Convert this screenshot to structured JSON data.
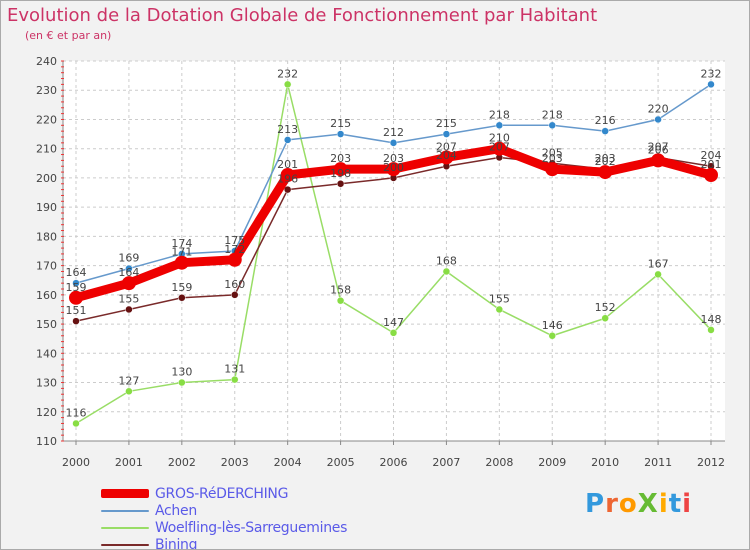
{
  "header": {
    "title": "Evolution de la Dotation Globale de Fonctionnement par Habitant",
    "subtitle": "(en € et par an)"
  },
  "logo": {
    "text": "ProXiti",
    "letters": [
      "P",
      "r",
      "o",
      "X",
      "i",
      "t",
      "i"
    ],
    "colors": [
      "#3399dd",
      "#ee6633",
      "#ff9900",
      "#66bb33",
      "#ffaa00",
      "#3399dd",
      "#ee4444"
    ]
  },
  "chart_data": {
    "type": "line",
    "title": "Evolution de la Dotation Globale de Fonctionnement par Habitant",
    "subtitle": "(en € et par an)",
    "xlabel": "",
    "ylabel": "",
    "x": [
      "2000",
      "2001",
      "2002",
      "2003",
      "2004",
      "2005",
      "2006",
      "2007",
      "2008",
      "2009",
      "2010",
      "2011",
      "2012"
    ],
    "ylim": [
      110,
      240
    ],
    "yticks": [
      110,
      120,
      130,
      140,
      150,
      160,
      170,
      180,
      190,
      200,
      210,
      220,
      230,
      240
    ],
    "grid": true,
    "legend_position": "bottom-left",
    "series": [
      {
        "name": "GROS-RéDERCHING",
        "color": "#ee0000",
        "values": [
          159,
          164,
          171,
          172,
          201,
          203,
          203,
          207,
          210,
          203,
          202,
          206,
          201
        ]
      },
      {
        "name": "Achen",
        "color": "#6699cc",
        "values": [
          164,
          169,
          174,
          175,
          213,
          215,
          212,
          215,
          218,
          218,
          216,
          220,
          232
        ]
      },
      {
        "name": "Woelfling-lès-Sarreguemines",
        "color": "#99dd66",
        "values": [
          116,
          127,
          130,
          131,
          232,
          158,
          147,
          168,
          155,
          146,
          152,
          167,
          148
        ]
      },
      {
        "name": "Bining",
        "color": "#7a2a2a",
        "values": [
          151,
          155,
          159,
          160,
          196,
          198,
          200,
          204,
          207,
          205,
          203,
          207,
          204
        ]
      }
    ]
  }
}
